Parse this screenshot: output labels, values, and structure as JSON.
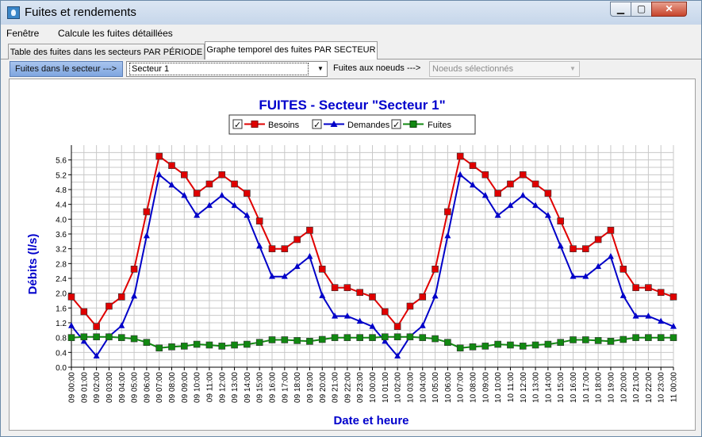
{
  "window": {
    "title": "Fuites et rendements",
    "min_label": "▁",
    "max_label": "▢",
    "close_label": "✕"
  },
  "menu": {
    "items": [
      {
        "label": "Fenêtre"
      },
      {
        "label": "Calcule les fuites détaillées"
      }
    ]
  },
  "tabs": [
    {
      "label": "Table des fuites dans les secteurs  PAR PÉRIODE",
      "active": false
    },
    {
      "label": "Graphe temporel des fuites PAR SECTEUR",
      "active": true
    }
  ],
  "filters": {
    "sector_label": "Fuites dans le secteur --->",
    "sector_value": "Secteur 1",
    "nodes_label": "Fuites aux noeuds --->",
    "nodes_value": "Noeuds sélectionnés"
  },
  "colors": {
    "besoins": "#e00000",
    "demandes": "#0000c8",
    "fuites": "#118811",
    "title": "#0000cc"
  },
  "chart_data": {
    "type": "line",
    "title": "FUITES - Secteur \"Secteur 1\"",
    "xlabel": "Date et heure",
    "ylabel": "Débits (l/s)",
    "ylim": [
      0,
      6.0
    ],
    "yticks": [
      "0.0",
      "0.4",
      "0.8",
      "1.2",
      "1.6",
      "2.0",
      "2.4",
      "2.8",
      "3.2",
      "3.6",
      "4.0",
      "4.4",
      "4.8",
      "5.2",
      "5.6"
    ],
    "x": [
      "09 00:00",
      "09 01:00",
      "09 02:00",
      "09 03:00",
      "09 04:00",
      "09 05:00",
      "09 06:00",
      "09 07:00",
      "09 08:00",
      "09 09:00",
      "09 10:00",
      "09 11:00",
      "09 12:00",
      "09 13:00",
      "09 14:00",
      "09 15:00",
      "09 16:00",
      "09 17:00",
      "09 18:00",
      "09 19:00",
      "09 20:00",
      "09 21:00",
      "09 22:00",
      "09 23:00",
      "10 00:00",
      "10 01:00",
      "10 02:00",
      "10 03:00",
      "10 04:00",
      "10 05:00",
      "10 06:00",
      "10 07:00",
      "10 08:00",
      "10 09:00",
      "10 10:00",
      "10 11:00",
      "10 12:00",
      "10 13:00",
      "10 14:00",
      "10 15:00",
      "10 16:00",
      "10 17:00",
      "10 18:00",
      "10 19:00",
      "10 20:00",
      "10 21:00",
      "10 22:00",
      "10 23:00",
      "11 00:00"
    ],
    "grid": true,
    "legend_position": "top-center",
    "series": [
      {
        "name": "Besoins",
        "color": "#e00000",
        "marker": "square",
        "values": [
          1.9,
          1.5,
          1.1,
          1.65,
          1.9,
          2.65,
          4.2,
          5.7,
          5.45,
          5.2,
          4.7,
          4.95,
          5.2,
          4.95,
          4.7,
          3.95,
          3.2,
          3.2,
          3.45,
          3.7,
          2.65,
          2.15,
          2.15,
          2.02,
          1.9,
          1.5,
          1.1,
          1.65,
          1.9,
          2.65,
          4.2,
          5.7,
          5.45,
          5.2,
          4.7,
          4.95,
          5.2,
          4.95,
          4.7,
          3.95,
          3.2,
          3.2,
          3.45,
          3.7,
          2.65,
          2.15,
          2.15,
          2.02,
          1.9
        ]
      },
      {
        "name": "Demandes",
        "color": "#0000c8",
        "marker": "triangle",
        "values": [
          1.12,
          0.7,
          0.3,
          0.83,
          1.12,
          1.92,
          3.55,
          5.2,
          4.92,
          4.64,
          4.1,
          4.37,
          4.64,
          4.37,
          4.1,
          3.27,
          2.45,
          2.45,
          2.72,
          2.99,
          1.93,
          1.38,
          1.38,
          1.24,
          1.1,
          0.7,
          0.3,
          0.83,
          1.12,
          1.92,
          3.55,
          5.2,
          4.92,
          4.64,
          4.1,
          4.37,
          4.64,
          4.37,
          4.1,
          3.27,
          2.45,
          2.45,
          2.72,
          2.99,
          1.93,
          1.38,
          1.38,
          1.24,
          1.1
        ]
      },
      {
        "name": "Fuites",
        "color": "#118811",
        "marker": "square",
        "values": [
          0.8,
          0.82,
          0.82,
          0.82,
          0.8,
          0.77,
          0.67,
          0.52,
          0.55,
          0.57,
          0.62,
          0.6,
          0.57,
          0.6,
          0.62,
          0.67,
          0.74,
          0.74,
          0.72,
          0.7,
          0.75,
          0.8,
          0.8,
          0.8,
          0.8,
          0.82,
          0.82,
          0.82,
          0.8,
          0.77,
          0.67,
          0.52,
          0.55,
          0.57,
          0.62,
          0.6,
          0.57,
          0.6,
          0.62,
          0.67,
          0.74,
          0.74,
          0.72,
          0.7,
          0.75,
          0.8,
          0.8,
          0.8,
          0.8
        ]
      }
    ]
  }
}
